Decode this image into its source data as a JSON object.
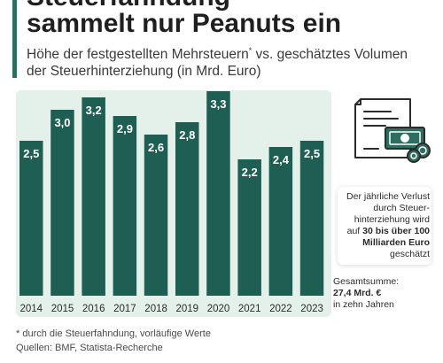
{
  "title_line1": "Steuerfahndung",
  "title_line2": "sammelt nur Peanuts ein",
  "subtitle_part1": "Höhe der festgestellten Mehrsteuern",
  "subtitle_sup": "*",
  "subtitle_part2": " vs. geschätztes Volumen der Steuerhinterziehung (in Mrd. Euro)",
  "info": {
    "line1": "Der jährliche Verlust durch Steuer-hinterziehung wird auf ",
    "bold": "30 bis über 100 Milliarden Euro",
    "line2": " geschätzt"
  },
  "sum": {
    "label": "Gesamtsumme:",
    "value": "27,4 Mrd. €",
    "suffix": "in zehn Jahren"
  },
  "footnote": "* durch die Steuerfahndung, vorläufige Werte",
  "sources": "Quellen: BMF, Statista-Recherche",
  "colors": {
    "bar": "#1f5e52",
    "panel": "#e4f1ea",
    "accent": "#2e6e61"
  },
  "illustration": "document-with-banknote-and-coins-icon",
  "chart_data": {
    "type": "bar",
    "categories": [
      "2014",
      "2015",
      "2016",
      "2017",
      "2018",
      "2019",
      "2020",
      "2021",
      "2022",
      "2023"
    ],
    "values": [
      2.5,
      3.0,
      3.2,
      2.9,
      2.6,
      2.8,
      3.3,
      2.2,
      2.4,
      2.5
    ],
    "value_labels": [
      "2,5",
      "3,0",
      "3,2",
      "2,9",
      "2,6",
      "2,8",
      "3,3",
      "2,2",
      "2,4",
      "2,5"
    ],
    "ylim": [
      0,
      3.3
    ],
    "grid": false
  }
}
